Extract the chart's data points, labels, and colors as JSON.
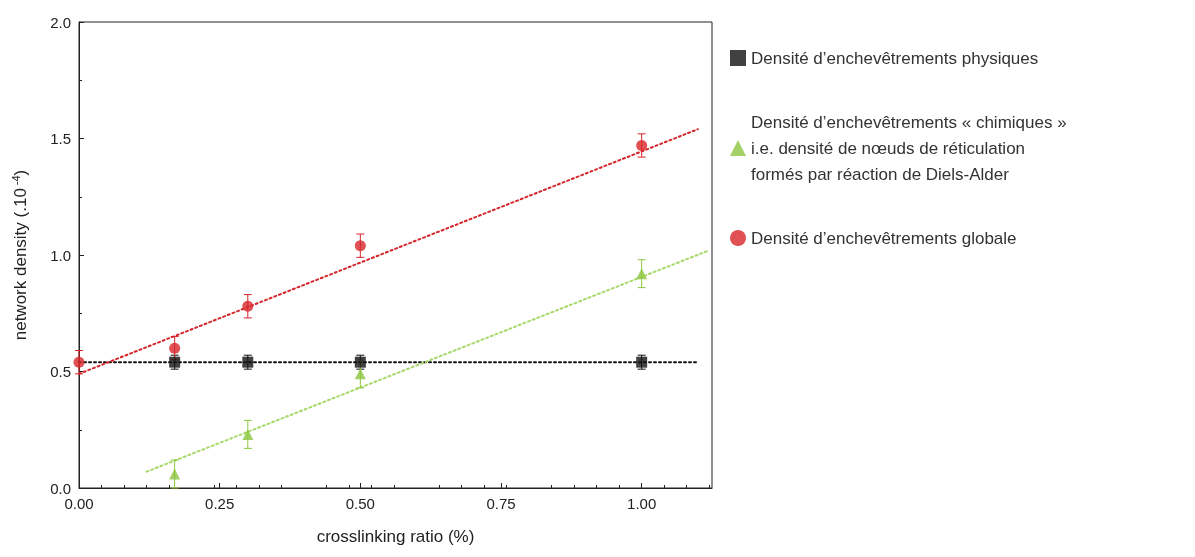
{
  "chart_data": {
    "type": "scatter",
    "xlabel": "crosslinking ratio (%)",
    "ylabel": "network density (.10$^{-4}$)",
    "xlim": [
      0,
      1.125
    ],
    "xticks": [
      {
        "value": 0,
        "label": "0.00"
      },
      {
        "value": 0.25,
        "label": "0.25"
      },
      {
        "value": 0.5,
        "label": "0.50"
      },
      {
        "value": 0.75,
        "label": "0.75"
      },
      {
        "value": 1,
        "label": "1.00"
      }
    ],
    "ylim": [
      0,
      2
    ],
    "yticks": [
      {
        "value": 0,
        "label": "0.0"
      },
      {
        "value": 0.5,
        "label": "0.5"
      },
      {
        "value": 1,
        "label": "1.0"
      },
      {
        "value": 1.5,
        "label": "1.5"
      },
      {
        "value": 2,
        "label": "2.0"
      }
    ],
    "grid": false,
    "legend": "right",
    "series": [
      {
        "name": "Densité d’enchevêtrements physiques",
        "color": "#111111",
        "marker": "square",
        "x": [
          0.17,
          0.3,
          0.5,
          1.0
        ],
        "values": [
          0.54,
          0.54,
          0.54,
          0.54
        ],
        "errors": [
          0.03,
          0.03,
          0.03,
          0.03
        ]
      },
      {
        "name": "Densité d’enchevêtrements « chimiques »\ni.e. densité de nœuds de réticulation\nformés par réaction de Diels-Alder",
        "color": "#8cc63f",
        "marker": "triangle",
        "x": [
          0.17,
          0.3,
          0.5,
          1.0
        ],
        "values": [
          0.06,
          0.23,
          0.49,
          0.92
        ],
        "errors": [
          0.06,
          0.06,
          0.06,
          0.06
        ]
      },
      {
        "name": "Densité d’enchevêtrements globale",
        "color": "#d7262b",
        "marker": "circle",
        "x": [
          0,
          0.17,
          0.3,
          0.5,
          1.0
        ],
        "values": [
          0.54,
          0.6,
          0.78,
          1.04,
          1.47
        ],
        "errors": [
          0.05,
          0.05,
          0.05,
          0.05,
          0.05
        ]
      },
      {
        "type": "line",
        "color": "#111111",
        "marker": "none",
        "line_style": "dotted",
        "x": [
          0,
          1.1
        ],
        "values": [
          0.54,
          0.54
        ]
      },
      {
        "type": "line",
        "color": "#a8d86a",
        "marker": "none",
        "line_style": "dotted",
        "x": [
          0.12,
          1.12
        ],
        "values": [
          0.07,
          1.02
        ]
      },
      {
        "type": "line",
        "color": "#d7262b",
        "marker": "none",
        "line_style": "dotted",
        "x": [
          0,
          1.1
        ],
        "values": [
          0.49,
          1.54
        ]
      }
    ]
  }
}
